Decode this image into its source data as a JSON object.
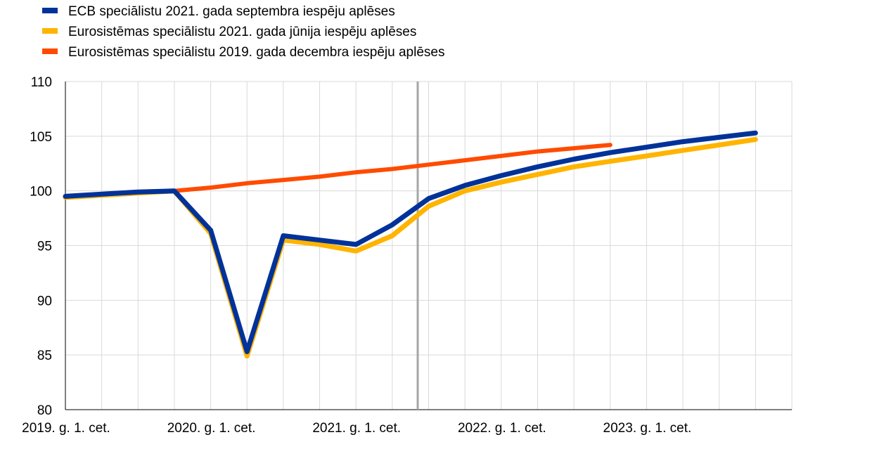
{
  "chart_data": {
    "type": "line",
    "title": "",
    "xlabel": "",
    "ylabel": "",
    "ylim": [
      80,
      110
    ],
    "yticks": [
      80,
      85,
      90,
      95,
      100,
      105,
      110
    ],
    "x_quarters": [
      "2019Q1",
      "2019Q2",
      "2019Q3",
      "2019Q4",
      "2020Q1",
      "2020Q2",
      "2020Q3",
      "2020Q4",
      "2021Q1",
      "2021Q2",
      "2021Q3",
      "2021Q4",
      "2022Q1",
      "2022Q2",
      "2022Q3",
      "2022Q4",
      "2023Q1",
      "2023Q2",
      "2023Q3",
      "2023Q4",
      "2024Q1"
    ],
    "x_tick_labels": [
      {
        "index": 0,
        "label": "2019. g. 1. cet."
      },
      {
        "index": 4,
        "label": "2020. g. 1. cet."
      },
      {
        "index": 8,
        "label": "2021. g. 1. cet."
      },
      {
        "index": 12,
        "label": "2022. g. 1. cet."
      },
      {
        "index": 16,
        "label": "2023. g. 1. cet."
      }
    ],
    "grid": true,
    "legend_position": "top-left",
    "projection_start_index": 9.7,
    "series": [
      {
        "name": "Eurosistēmas speciālistu 2019. gada decembra iespēju aplēses",
        "color": "#FF4B00",
        "start_index": 0,
        "values": [
          99.5,
          99.7,
          99.9,
          100.0,
          100.3,
          100.7,
          101.0,
          101.3,
          101.7,
          102.0,
          102.4,
          102.8,
          103.2,
          103.6,
          103.9,
          104.2
        ]
      },
      {
        "name": "Eurosistēmas speciālistu 2021. gada jūnija iespēju aplēses",
        "color": "#FFB400",
        "start_index": 0,
        "values": [
          99.4,
          99.6,
          99.8,
          100.0,
          96.1,
          84.9,
          95.5,
          95.1,
          94.5,
          95.9,
          98.6,
          100.0,
          100.8,
          101.5,
          102.2,
          102.7,
          103.2,
          103.7,
          104.2,
          104.7
        ]
      },
      {
        "name": "ECB speciālistu 2021. gada septembra iespēju aplēses",
        "color": "#003299",
        "start_index": 0,
        "values": [
          99.5,
          99.7,
          99.9,
          100.0,
          96.4,
          85.3,
          95.9,
          95.5,
          95.1,
          96.9,
          99.3,
          100.5,
          101.4,
          102.2,
          102.9,
          103.5,
          104.0,
          104.5,
          104.9,
          105.3
        ]
      }
    ],
    "legend": [
      {
        "label": "ECB speciālistu 2021. gada septembra iespēju aplēses",
        "color": "#003299"
      },
      {
        "label": "Eurosistēmas speciālistu 2021. gada jūnija iespēju aplēses",
        "color": "#FFB400"
      },
      {
        "label": "Eurosistēmas speciālistu 2019. gada decembra iespēju aplēses",
        "color": "#FF4B00"
      }
    ]
  }
}
